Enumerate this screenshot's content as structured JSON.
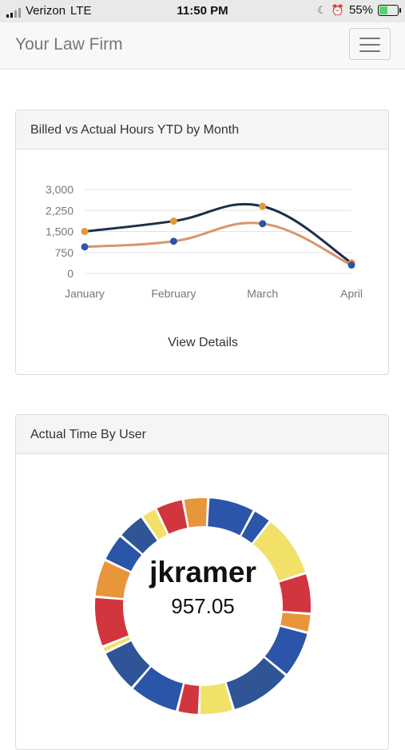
{
  "status_bar": {
    "carrier": "Verizon",
    "network": "LTE",
    "time": "11:50 PM",
    "battery_percent": "55%",
    "battery_level": 0.55
  },
  "navbar": {
    "brand": "Your Law Firm",
    "menu_icon": "hamburger-icon"
  },
  "billed_panel": {
    "title": "Billed vs Actual Hours YTD by Month",
    "view_details": "View Details"
  },
  "chart_data": {
    "type": "line",
    "categories": [
      "January",
      "February",
      "March",
      "April"
    ],
    "y_ticks": [
      "3,000",
      "2,250",
      "1,500",
      "750",
      "0"
    ],
    "ylim": [
      0,
      3000
    ],
    "grid": true,
    "series": [
      {
        "values": [
          1500,
          1870,
          2400,
          380
        ],
        "line_color": "#1c2e4a",
        "point_color": "#e8963c"
      },
      {
        "values": [
          950,
          1150,
          1780,
          300
        ],
        "line_color": "#d9956b",
        "point_color": "#2a55a8"
      }
    ]
  },
  "time_panel": {
    "title": "Actual Time By User",
    "selected_user": "jkramer",
    "selected_value": "957.05"
  },
  "donut": {
    "segments": [
      {
        "color": "#2a55a8",
        "value": 15
      },
      {
        "color": "#2a55a8",
        "value": 6
      },
      {
        "color": "#f1e169",
        "value": 20
      },
      {
        "color": "#d1363f",
        "value": 13
      },
      {
        "color": "#e8963c",
        "value": 6
      },
      {
        "color": "#2a55a8",
        "value": 15
      },
      {
        "color": "#2f5597",
        "value": 20
      },
      {
        "color": "#f1e169",
        "value": 11
      },
      {
        "color": "#d1363f",
        "value": 7
      },
      {
        "color": "#2a55a8",
        "value": 16
      },
      {
        "color": "#2f5597",
        "value": 14
      },
      {
        "color": "#f1e169",
        "value": 2
      },
      {
        "color": "#d1363f",
        "value": 16
      },
      {
        "color": "#e8963c",
        "value": 12
      },
      {
        "color": "#2a55a8",
        "value": 9
      },
      {
        "color": "#2f5597",
        "value": 9
      },
      {
        "color": "#f1e169",
        "value": 5
      },
      {
        "color": "#d1363f",
        "value": 9
      },
      {
        "color": "#e8963c",
        "value": 8
      }
    ]
  }
}
